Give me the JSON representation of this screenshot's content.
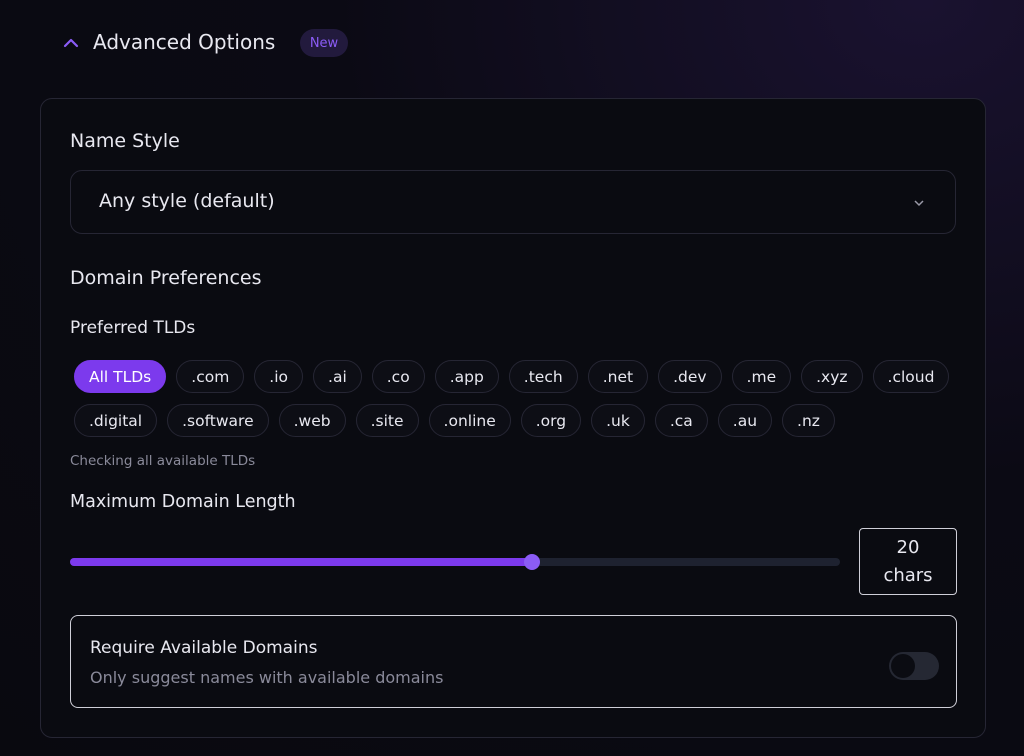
{
  "header": {
    "title": "Advanced Options",
    "badge": "New",
    "expanded": true
  },
  "name_style": {
    "label": "Name Style",
    "selected": "Any style (default)"
  },
  "domain_preferences": {
    "title": "Domain Preferences",
    "tlds": {
      "label": "Preferred TLDs",
      "selected_index": 0,
      "options": [
        "All TLDs",
        ".com",
        ".io",
        ".ai",
        ".co",
        ".app",
        ".tech",
        ".net",
        ".dev",
        ".me",
        ".xyz",
        ".cloud",
        ".digital",
        ".software",
        ".web",
        ".site",
        ".online",
        ".org",
        ".uk",
        ".ca",
        ".au",
        ".nz"
      ],
      "hint": "Checking all available TLDs"
    },
    "max_length": {
      "label": "Maximum Domain Length",
      "value": 20,
      "unit": "chars",
      "range": [
        5,
        30
      ]
    }
  },
  "require_available": {
    "title": "Require Available Domains",
    "description": "Only suggest names with available domains",
    "enabled": false
  }
}
